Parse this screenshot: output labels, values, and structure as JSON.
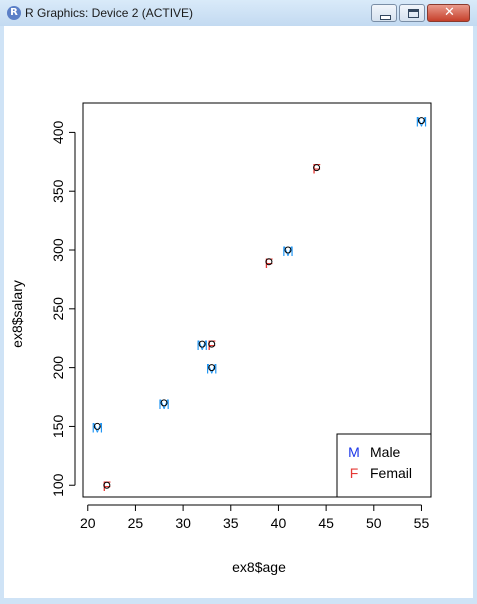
{
  "window": {
    "title": "R Graphics: Device 2 (ACTIVE)",
    "icon": "R",
    "buttons": {
      "minimize": "minimize",
      "maximize": "maximize",
      "close": "close"
    }
  },
  "chart_data": {
    "type": "scatter",
    "xlabel": "ex8$age",
    "ylabel": "ex8$salary",
    "xlim": [
      19.5,
      56
    ],
    "ylim": [
      90,
      425
    ],
    "xticks": [
      20,
      25,
      30,
      35,
      40,
      45,
      50,
      55
    ],
    "yticks": [
      100,
      150,
      200,
      250,
      300,
      350,
      400
    ],
    "grid": false,
    "legend_position": "bottom-right",
    "series": [
      {
        "name": "Male",
        "symbol": "M",
        "color": "#2196f3",
        "x": [
          21,
          28,
          32,
          33,
          41,
          55
        ],
        "y": [
          150,
          170,
          220,
          200,
          300,
          410
        ]
      },
      {
        "name": "Femail",
        "symbol": "F",
        "color": "#e53935",
        "x": [
          22,
          33,
          39,
          44
        ],
        "y": [
          100,
          220,
          290,
          370
        ]
      }
    ],
    "legend": [
      {
        "symbol": "M",
        "label": "Male",
        "color": "#1a35e8"
      },
      {
        "symbol": "F",
        "label": "Femail",
        "color": "#e53935"
      }
    ]
  }
}
